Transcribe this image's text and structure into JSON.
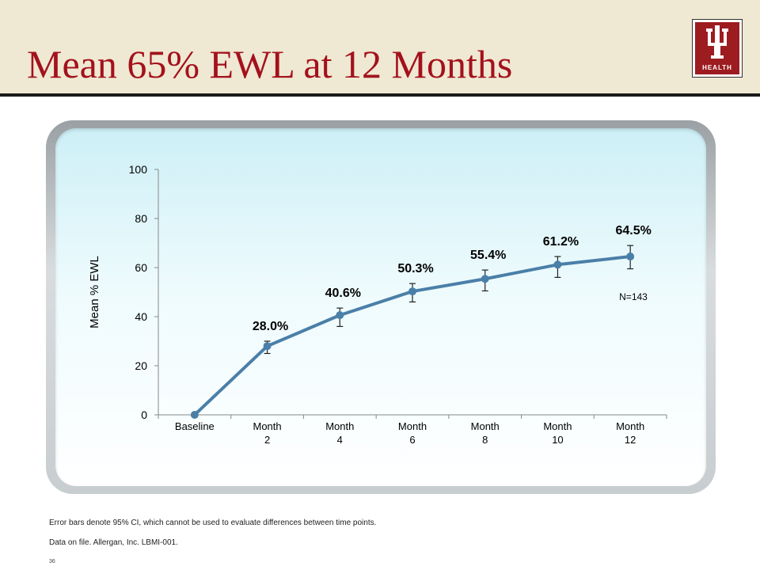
{
  "slide": {
    "title": "Mean 65% EWL at 12 Months",
    "logo_text": "HEALTH",
    "footnote_1": "Error bars denote 95% CI, which cannot be used to evaluate differences between time points.",
    "footnote_2": "Data on file. Allergan, Inc. LBMI-001.",
    "page_number": "36"
  },
  "colors": {
    "title": "#a3111c",
    "line": "#4a7fa8",
    "logo": "#9d1c20"
  },
  "chart_data": {
    "type": "line",
    "title": "",
    "xlabel": "",
    "ylabel": "Mean % EWL",
    "ylim": [
      0,
      100
    ],
    "yticks": [
      0,
      20,
      40,
      60,
      80,
      100
    ],
    "categories": [
      [
        "Baseline"
      ],
      [
        "Month",
        "2"
      ],
      [
        "Month",
        "4"
      ],
      [
        "Month",
        "6"
      ],
      [
        "Month",
        "8"
      ],
      [
        "Month",
        "10"
      ],
      [
        "Month",
        "12"
      ]
    ],
    "values": [
      0,
      28.0,
      40.6,
      50.3,
      55.4,
      61.2,
      64.5
    ],
    "data_labels": [
      "",
      "28.0%",
      "40.6%",
      "50.3%",
      "55.4%",
      "61.2%",
      "64.5%"
    ],
    "error_low": [
      null,
      25,
      36,
      46,
      50.5,
      56,
      59.5
    ],
    "error_high": [
      null,
      30,
      43.5,
      53.5,
      59,
      64.5,
      69
    ],
    "annotation": "N=143",
    "grid": false,
    "legend": "none"
  }
}
